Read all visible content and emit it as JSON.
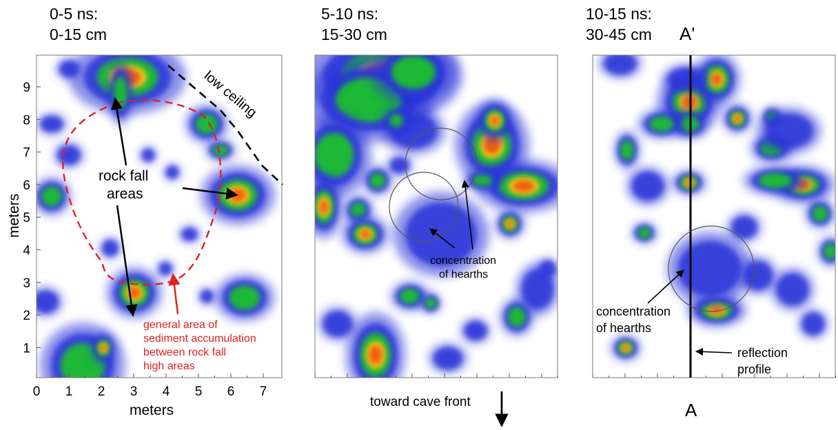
{
  "panels": [
    {
      "title_line1": "0-5 ns:",
      "title_line2": "0-15 cm",
      "ylabel": "meters",
      "xlabel": "meters",
      "x_ticks": [
        "0",
        "1",
        "2",
        "3",
        "4",
        "5",
        "6",
        "7"
      ],
      "y_ticks": [
        "1",
        "2",
        "3",
        "4",
        "5",
        "6",
        "7",
        "8",
        "9"
      ],
      "annotations": {
        "low_ceiling": "low ceiling",
        "rock_fall_line1": "rock fall",
        "rock_fall_line2": "areas",
        "sediment_line1": "general area of",
        "sediment_line2": "sediment accumulation",
        "sediment_line3": "between rock fall",
        "sediment_line4": "high areas"
      }
    },
    {
      "title_line1": "5-10 ns:",
      "title_line2": "15-30 cm",
      "annotations": {
        "hearths_line1": "concentration",
        "hearths_line2": "of hearths",
        "toward_front": "toward cave front"
      }
    },
    {
      "title_line1": "10-15 ns:",
      "title_line2": "30-45 cm",
      "annotations": {
        "a_prime": "A'",
        "a": "A",
        "hearths_line1": "concentration",
        "hearths_line2": "of hearths",
        "reflection_line1": "reflection",
        "reflection_line2": "profile"
      }
    }
  ],
  "colors": {
    "low": "#2a35d8",
    "mid": "#1fbf2f",
    "high": "#f06010",
    "sediment_outline": "#e02020"
  }
}
